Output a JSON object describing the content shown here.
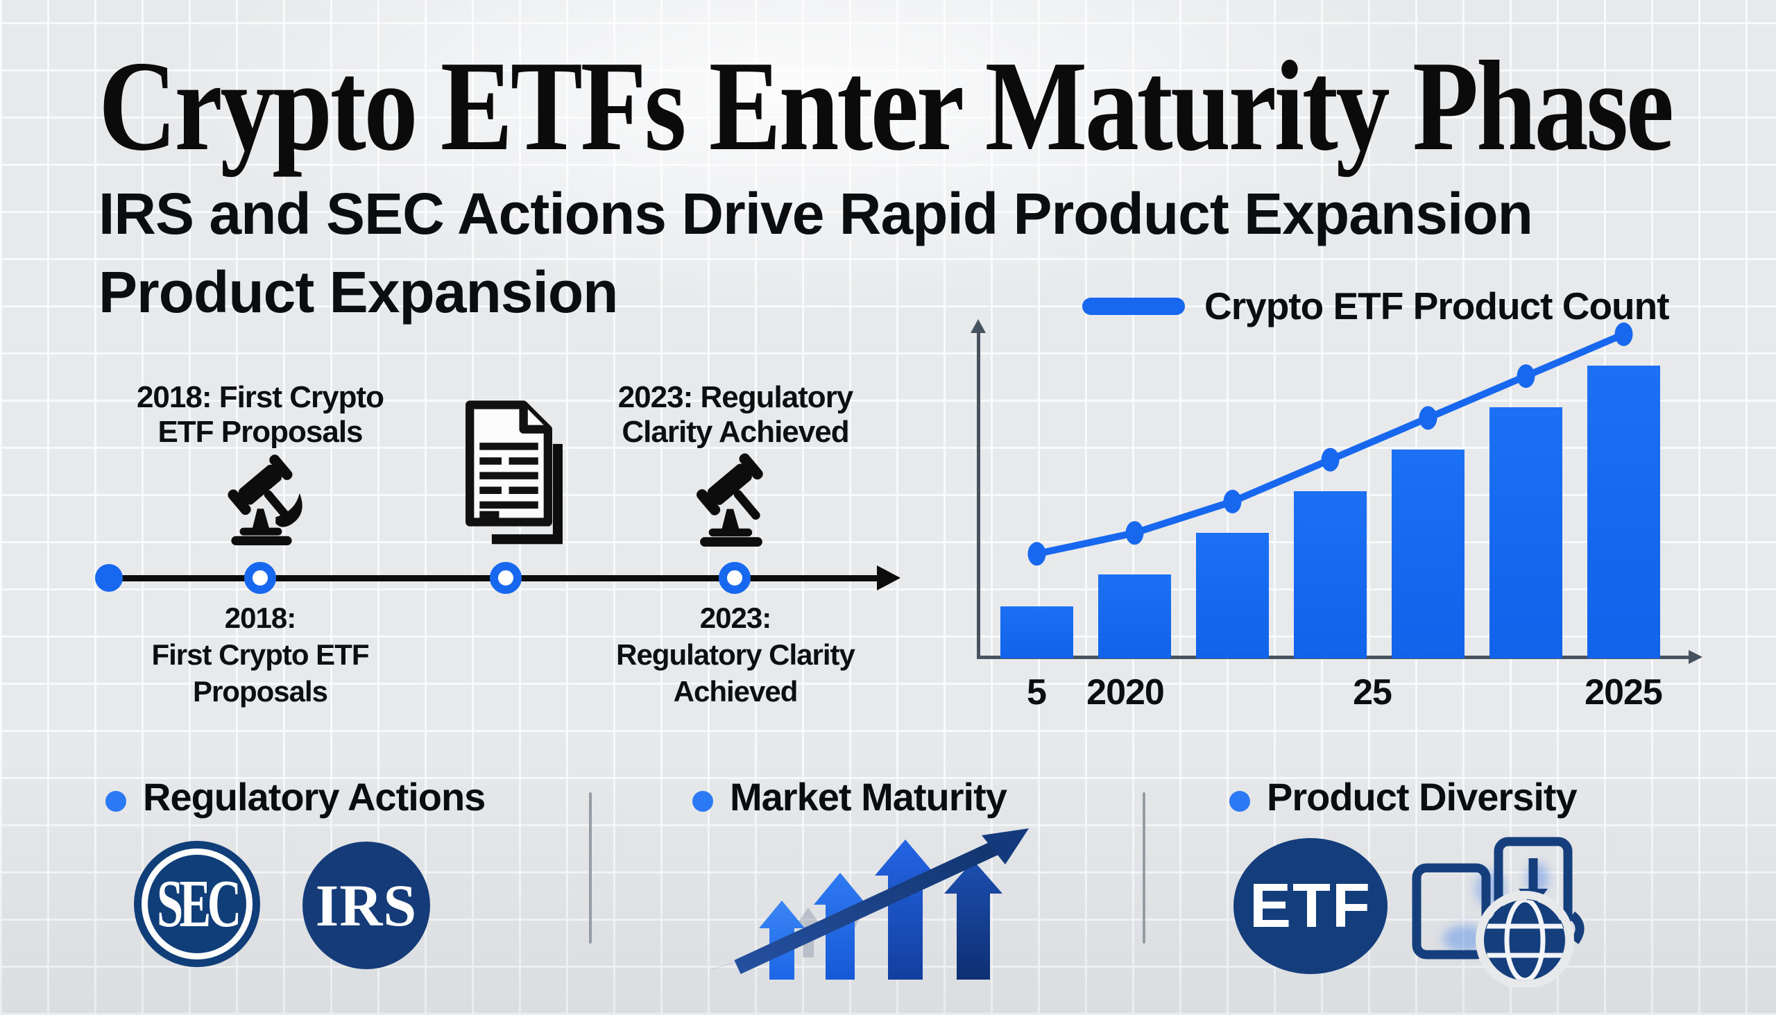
{
  "title": "Crypto ETFs Enter Maturity Phase",
  "subtitle": {
    "line1": "IRS and SEC Actions Drive Rapid Product Expansion",
    "line2": "Product Expansion"
  },
  "chart_data": {
    "type": "bar",
    "title": "",
    "legend": [
      {
        "label": "Crypto ETF Product Count",
        "color": "#1767ef"
      }
    ],
    "legend_position": "top",
    "x_tick_labels": [
      "5",
      "2020",
      "25",
      "2025"
    ],
    "series": [
      {
        "name": "Crypto ETF Product Count (bars)",
        "type": "bar",
        "values": [
          5,
          8,
          12,
          16,
          20,
          24,
          28
        ]
      },
      {
        "name": "Crypto ETF Product Count (trend line)",
        "type": "line",
        "values": [
          10,
          12,
          15,
          19,
          23,
          27,
          31
        ]
      }
    ],
    "ylim": [
      0,
      32
    ],
    "grid": false,
    "axis_arrows": true
  },
  "timeline": {
    "events": [
      {
        "top_line1": "2018: First Crypto",
        "top_line2": "ETF Proposals",
        "bottom_line1": "2018:",
        "bottom_line2": "First Crypto ETF",
        "bottom_line3": "Proposals",
        "icon": "gavel-icon"
      },
      {
        "icon": "document-icon"
      },
      {
        "top_line1": "2023: Regulatory",
        "top_line2": "Clarity Achieved",
        "bottom_line1": "2023:",
        "bottom_line2": "Regulatory Clarity",
        "bottom_line3": "Achieved",
        "icon": "gavel-icon"
      }
    ]
  },
  "features": [
    {
      "label": "Regulatory Actions",
      "badges": [
        "SEC",
        "IRS"
      ]
    },
    {
      "label": "Market Maturity",
      "icon": "growth-arrows-icon"
    },
    {
      "label": "Product Diversity",
      "badges": [
        "ETF"
      ],
      "icon": "cards-globe-icon"
    }
  ],
  "colors": {
    "accent_blue": "#1767ef",
    "navy": "#133d7a",
    "axis": "#47525f",
    "text": "#0c0d0e",
    "background": "#e7e9eb"
  }
}
